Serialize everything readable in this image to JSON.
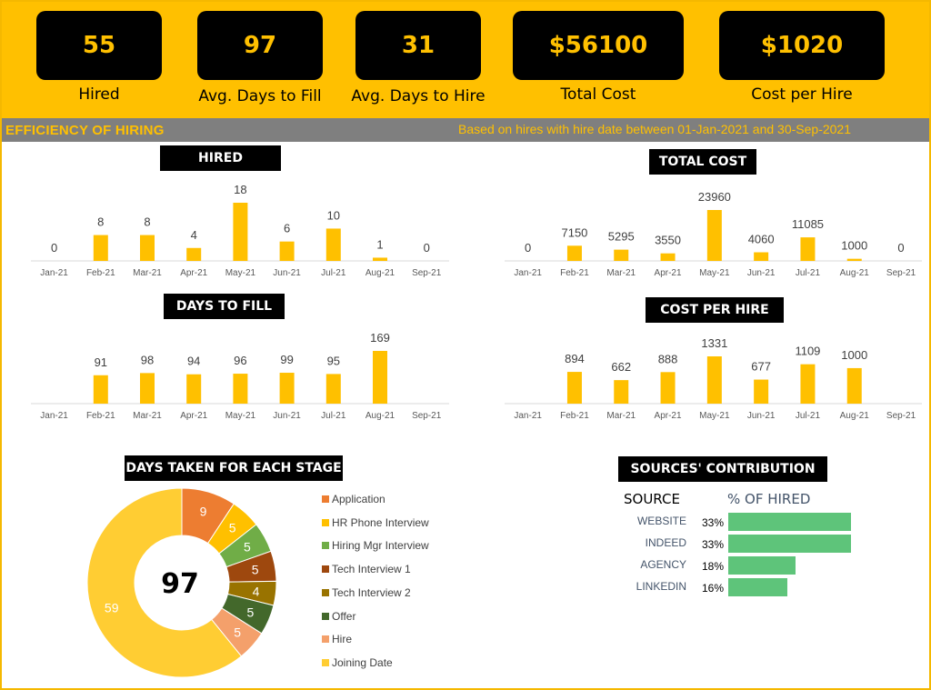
{
  "kpis": [
    {
      "value": "55",
      "label": "Hired"
    },
    {
      "value": "97",
      "label": "Avg. Days to Fill"
    },
    {
      "value": "31",
      "label": "Avg. Days to Hire"
    },
    {
      "value": "$56100",
      "label": "Total Cost"
    },
    {
      "value": "$1020",
      "label": "Cost per Hire"
    }
  ],
  "section": {
    "title": "EFFICIENCY OF HIRING",
    "note": "Based on hires with hire date between 01-Jan-2021 and 30-Sep-2021"
  },
  "colors": {
    "accent": "#ffc000",
    "bar": "#ffc000",
    "source_bar": "#5ec47a",
    "band_gray": "#7f7f7f"
  },
  "chart_data": [
    {
      "type": "bar",
      "title": "HIRED",
      "categories": [
        "Jan-21",
        "Feb-21",
        "Mar-21",
        "Apr-21",
        "May-21",
        "Jun-21",
        "Jul-21",
        "Aug-21",
        "Sep-21"
      ],
      "values": [
        0,
        8,
        8,
        4,
        18,
        6,
        10,
        1,
        0
      ],
      "labels": [
        "0",
        "8",
        "8",
        "4",
        "18",
        "6",
        "10",
        "1",
        "0"
      ],
      "ylim": [
        0,
        18
      ]
    },
    {
      "type": "bar",
      "title": "TOTAL COST",
      "categories": [
        "Jan-21",
        "Feb-21",
        "Mar-21",
        "Apr-21",
        "May-21",
        "Jun-21",
        "Jul-21",
        "Aug-21",
        "Sep-21"
      ],
      "values": [
        0,
        7150,
        5295,
        3550,
        23960,
        4060,
        11085,
        1000,
        0
      ],
      "labels": [
        "0",
        "7150",
        "5295",
        "3550",
        "23960",
        "4060",
        "11085",
        "1000",
        "0"
      ],
      "ylim": [
        0,
        23960
      ]
    },
    {
      "type": "bar",
      "title": "DAYS TO FILL",
      "categories": [
        "Jan-21",
        "Feb-21",
        "Mar-21",
        "Apr-21",
        "May-21",
        "Jun-21",
        "Jul-21",
        "Aug-21",
        "Sep-21"
      ],
      "values": [
        null,
        91,
        98,
        94,
        96,
        99,
        95,
        169,
        null
      ],
      "labels": [
        "",
        "91",
        "98",
        "94",
        "96",
        "99",
        "95",
        "169",
        ""
      ],
      "ylim": [
        0,
        169
      ]
    },
    {
      "type": "bar",
      "title": "COST PER HIRE",
      "categories": [
        "Jan-21",
        "Feb-21",
        "Mar-21",
        "Apr-21",
        "May-21",
        "Jun-21",
        "Jul-21",
        "Aug-21",
        "Sep-21"
      ],
      "values": [
        null,
        894,
        662,
        888,
        1331,
        677,
        1109,
        1000,
        null
      ],
      "labels": [
        "",
        "894",
        "662",
        "888",
        "1331",
        "677",
        "1109",
        "1000",
        ""
      ],
      "ylim": [
        0,
        1331
      ]
    },
    {
      "type": "pie",
      "title": "DAYS TAKEN FOR EACH STAGE",
      "center_label": "97",
      "slices": [
        {
          "name": "Application",
          "value": 9,
          "color": "#ed7d31"
        },
        {
          "name": "HR Phone Interview",
          "value": 5,
          "color": "#ffc000"
        },
        {
          "name": "Hiring Mgr Interview",
          "value": 5,
          "color": "#70ad47"
        },
        {
          "name": "Tech Interview 1",
          "value": 5,
          "color": "#9e480e"
        },
        {
          "name": "Tech Interview 2",
          "value": 4,
          "color": "#997300"
        },
        {
          "name": "Offer",
          "value": 5,
          "color": "#43682b"
        },
        {
          "name": "Hire",
          "value": 5,
          "color": "#f4a06b"
        },
        {
          "name": "Joining Date",
          "value": 59,
          "color": "#ffcd33"
        }
      ]
    },
    {
      "type": "bar",
      "title": "SOURCES' CONTRIBUTION",
      "header_source": "SOURCE",
      "header_pct": "% OF HIRED",
      "categories": [
        "WEBSITE",
        "INDEED",
        "AGENCY",
        "LINKEDIN"
      ],
      "values": [
        33,
        33,
        18,
        16
      ],
      "labels": [
        "33%",
        "33%",
        "18%",
        "16%"
      ],
      "unit": "%"
    }
  ]
}
